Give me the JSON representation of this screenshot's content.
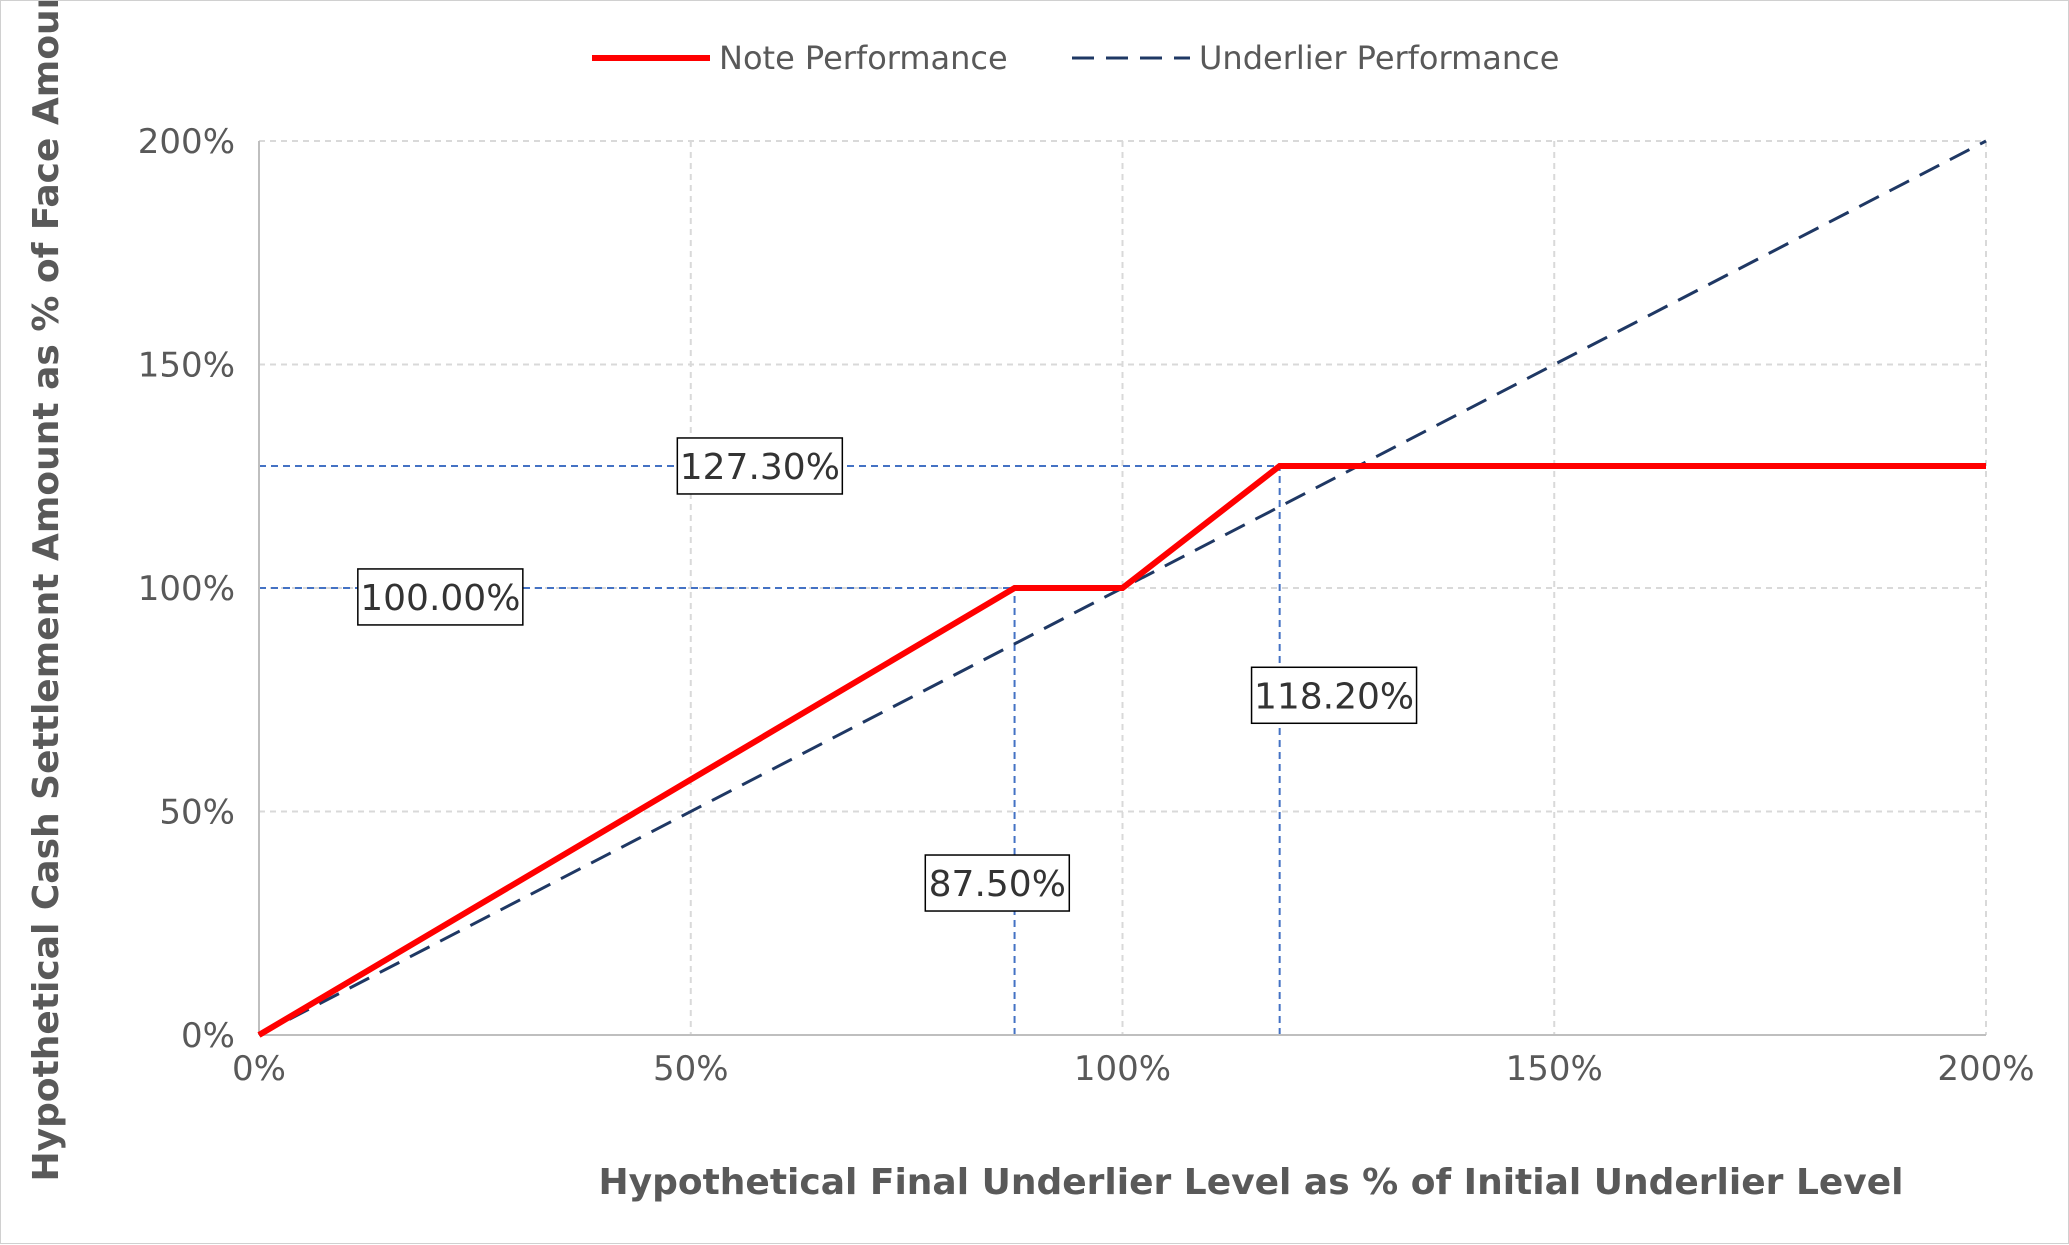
{
  "chart_data": {
    "type": "line",
    "xlabel": "Hypothetical Final Underlier Level as % of Initial Underlier Level",
    "ylabel": "Hypothetical Cash Settlement Amount as % of Face Amount",
    "xlim": [
      0,
      200
    ],
    "ylim": [
      0,
      200
    ],
    "x_ticks": [
      0,
      50,
      100,
      150,
      200
    ],
    "y_ticks": [
      0,
      50,
      100,
      150,
      200
    ],
    "x_tick_labels": [
      "0%",
      "50%",
      "100%",
      "150%",
      "200%"
    ],
    "y_tick_labels": [
      "0%",
      "50%",
      "100%",
      "150%",
      "200%"
    ],
    "grid": true,
    "legend_position": "top-center",
    "series": [
      {
        "name": "Note Performance",
        "style": "solid",
        "color": "#ff0000",
        "x": [
          0,
          87.5,
          100,
          118.2,
          200
        ],
        "y": [
          0,
          100,
          100,
          127.3,
          127.3
        ]
      },
      {
        "name": "Underlier Performance",
        "style": "dashed",
        "color": "#1f3864",
        "x": [
          0,
          200
        ],
        "y": [
          0,
          200
        ]
      }
    ],
    "reference_lines": [
      {
        "orientation": "horizontal",
        "value": 100,
        "from": 0,
        "to": 87.5,
        "color": "#4472c4"
      },
      {
        "orientation": "horizontal",
        "value": 127.3,
        "from": 0,
        "to": 118.2,
        "color": "#4472c4"
      },
      {
        "orientation": "vertical",
        "value": 87.5,
        "from": 0,
        "to": 100,
        "color": "#4472c4"
      },
      {
        "orientation": "vertical",
        "value": 118.2,
        "from": 0,
        "to": 127.3,
        "color": "#4472c4"
      }
    ],
    "annotations": [
      {
        "text": "127.30%",
        "x": 58,
        "y": 127.3
      },
      {
        "text": "100.00%",
        "x": 21,
        "y": 98
      },
      {
        "text": "118.20%",
        "x": 124.5,
        "y": 76
      },
      {
        "text": "87.50%",
        "x": 85.5,
        "y": 34
      }
    ]
  }
}
